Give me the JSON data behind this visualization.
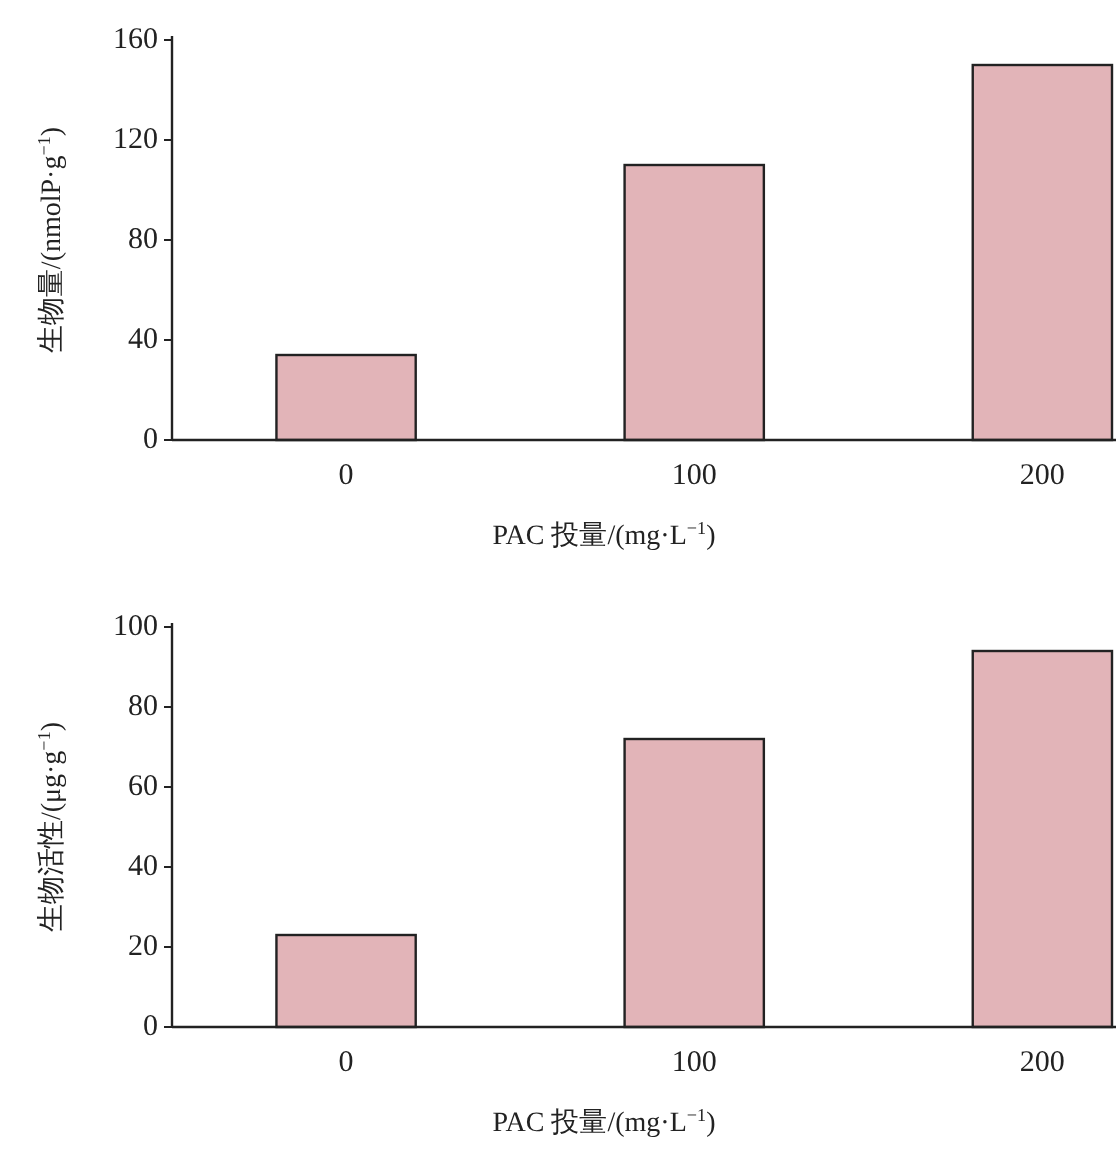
{
  "chart_data": [
    {
      "type": "bar",
      "categories": [
        "0",
        "100",
        "200"
      ],
      "values": [
        34,
        110,
        150
      ],
      "color": "#e2b4b8",
      "ylim": [
        0,
        160
      ],
      "yticks": [
        0,
        40,
        80,
        120,
        160
      ],
      "xlabel": "PAC 投量/(mg·L$^{−1}$)",
      "ylabel": "生物量/(nmolP·g$^{−1}$)"
    },
    {
      "type": "bar",
      "categories": [
        "0",
        "100",
        "200"
      ],
      "values": [
        23,
        72,
        94
      ],
      "color": "#e2b4b8",
      "ylim": [
        0,
        100
      ],
      "yticks": [
        0,
        20,
        40,
        60,
        80,
        100
      ],
      "xlabel": "PAC 投量/(mg·L$^{−1}$)",
      "ylabel": "生物活性/(μg·g$^{−1}$)"
    }
  ]
}
